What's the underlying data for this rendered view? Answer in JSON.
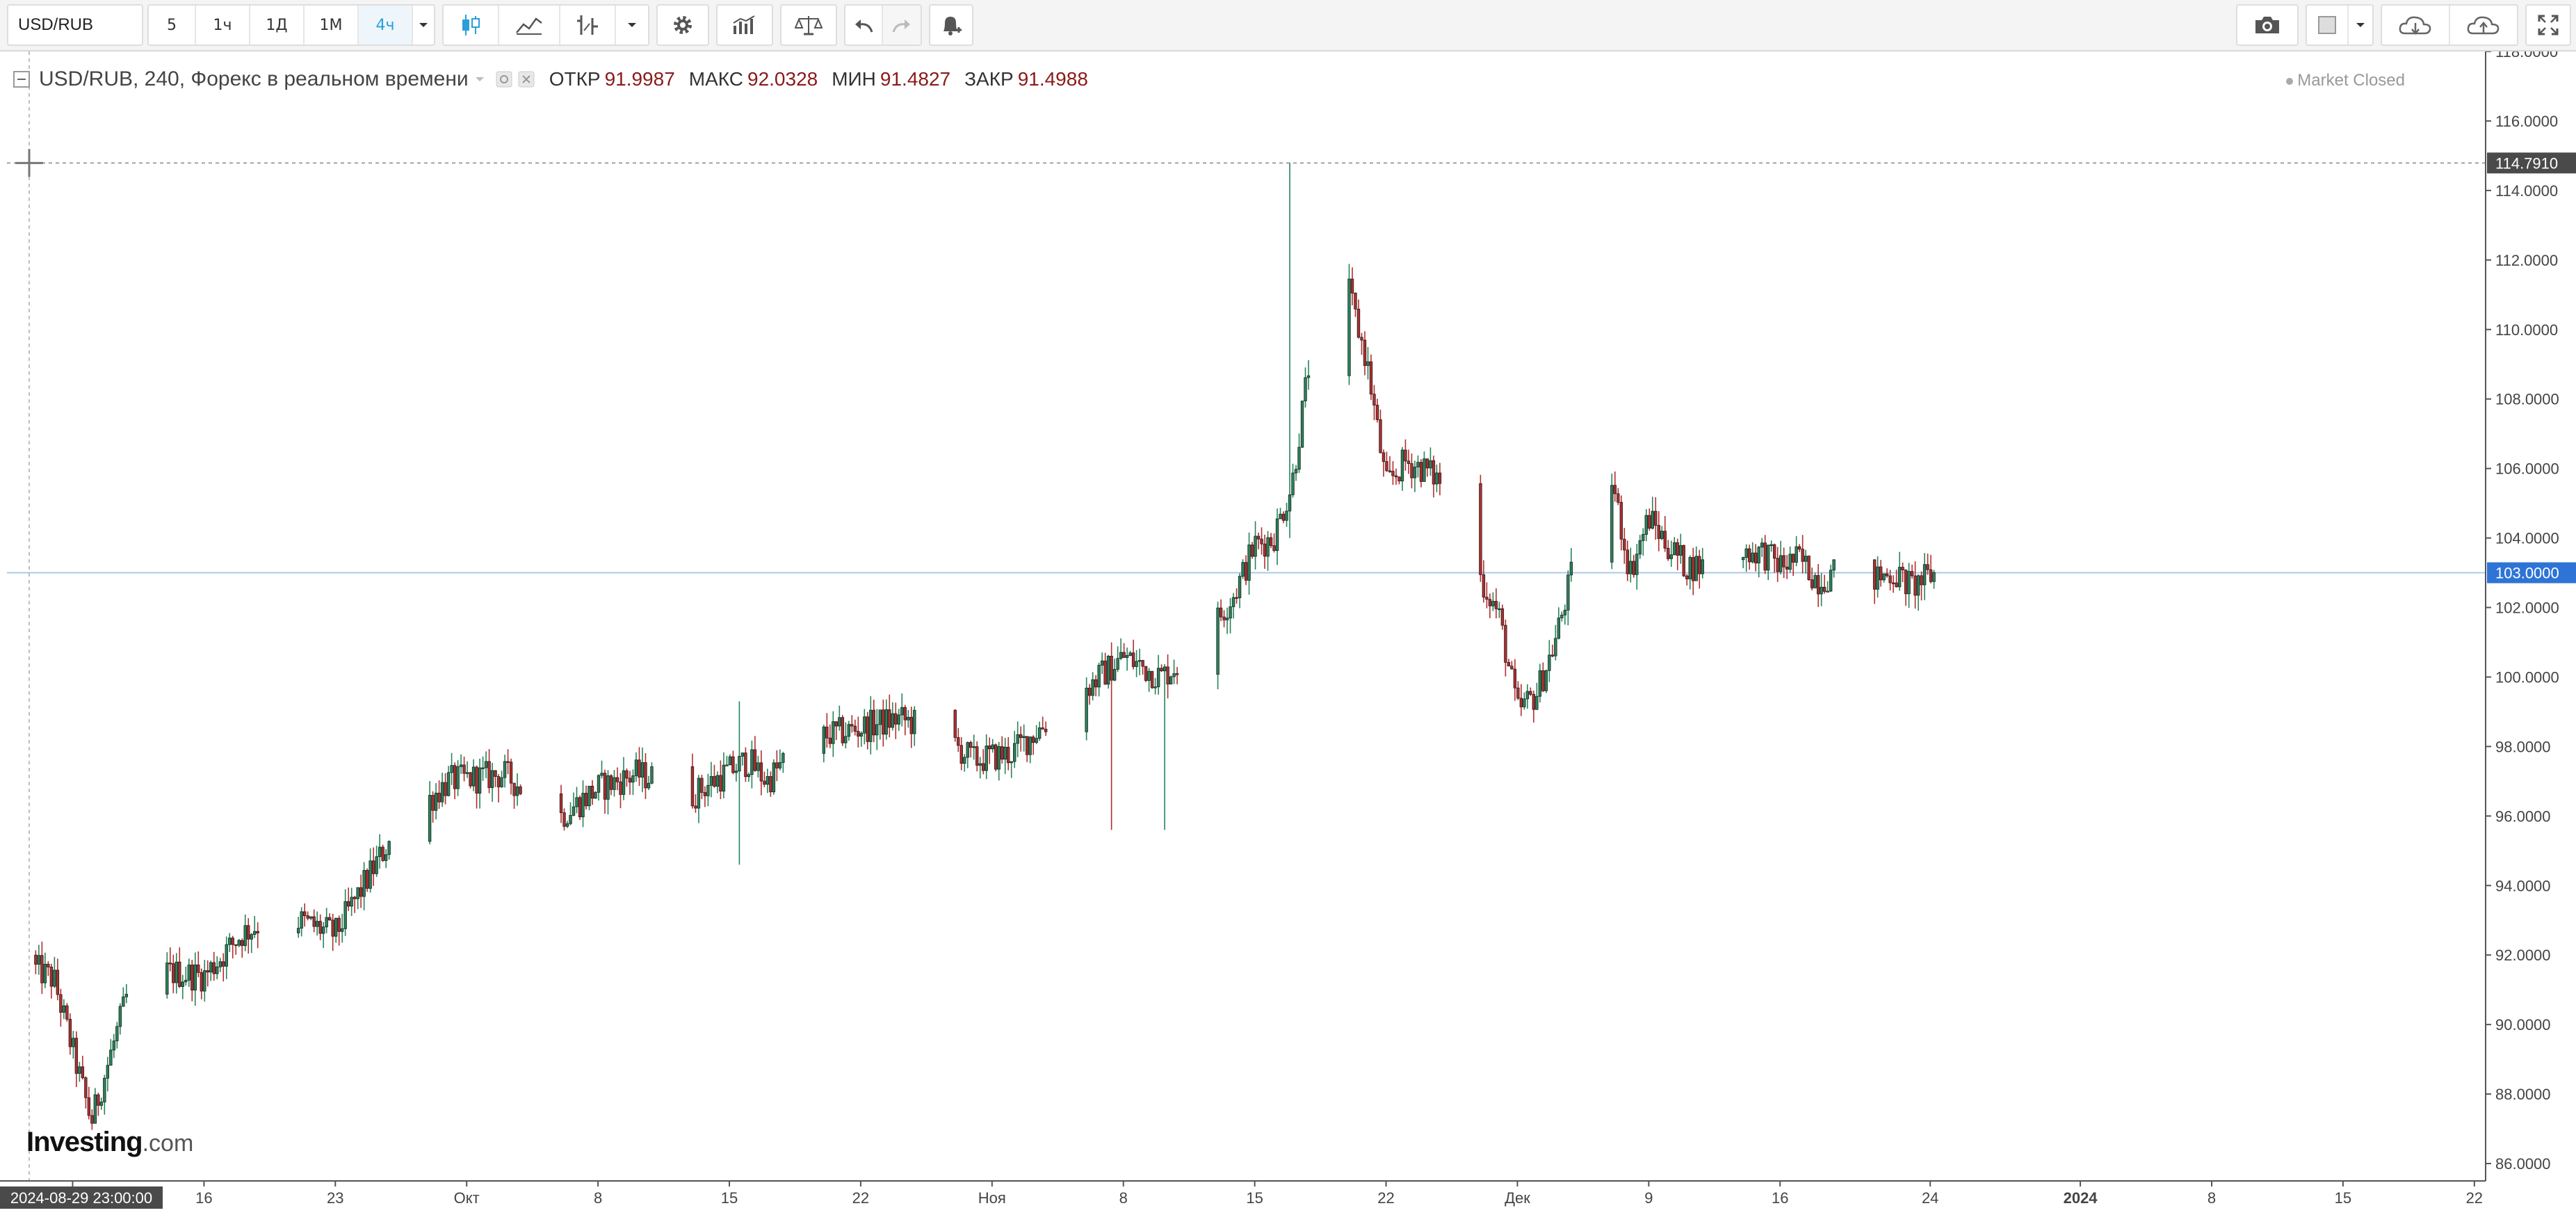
{
  "toolbar": {
    "symbol": "USD/RUB",
    "intervals": [
      "5",
      "1ч",
      "1Д",
      "1М",
      "4ч"
    ],
    "active_interval": "4ч",
    "icons": [
      "candles-icon",
      "line-chart-icon",
      "indicators-icon",
      "settings-icon",
      "bar-compare-icon",
      "scales-icon",
      "undo-icon",
      "redo-icon",
      "alert-icon",
      "camera-icon",
      "color-square-icon",
      "cloud-load-icon",
      "cloud-save-icon",
      "fullscreen-icon"
    ]
  },
  "legend": {
    "title": "USD/RUB, 240, Форекс в реальном времени",
    "open_label": "ОТКР",
    "open": "91.9987",
    "high_label": "МАКС",
    "high": "92.0328",
    "low_label": "МИН",
    "low": "91.4827",
    "close_label": "ЗАКР",
    "close": "91.4988",
    "market_status": "Market Closed"
  },
  "watermark": {
    "brand": "Investing",
    "suffix": ".com"
  },
  "colors": {
    "up": "#26845a",
    "down": "#b32d2d",
    "price_line": "#a8c8e8",
    "price_label_bg": "#2e74d6",
    "crosshair_label_bg": "#4a4a4a"
  },
  "chart_data": {
    "type": "candlestick",
    "symbol": "USD/RUB",
    "interval": "240",
    "y_ticks": [
      "86.0000",
      "88.0000",
      "90.0000",
      "92.0000",
      "94.0000",
      "96.0000",
      "98.0000",
      "100.0000",
      "102.0000",
      "104.0000",
      "106.0000",
      "108.0000",
      "110.0000",
      "112.0000",
      "114.0000",
      "116.0000",
      "118.0000"
    ],
    "ylim": [
      85.5,
      118.0
    ],
    "x_tick_labels": [
      "9",
      "16",
      "23",
      "Окт",
      "8",
      "15",
      "22",
      "Ноя",
      "8",
      "15",
      "22",
      "Дек",
      "9",
      "16",
      "24",
      "2024",
      "8",
      "15",
      "22"
    ],
    "x_tick_days": [
      0,
      7,
      14,
      21,
      28,
      35,
      42,
      49,
      56,
      63,
      70,
      77,
      84,
      91,
      99,
      107,
      114,
      121,
      128
    ],
    "x_range_days": [
      -3.5,
      128.6
    ],
    "date_start_label": "2024-08-29 23:00:00",
    "last_price": 103.0,
    "crosshair_price": 114.791,
    "crosshair_label": "114.7910",
    "last_price_label": "103.0000",
    "close_series_days": [
      -3.3,
      -1,
      1,
      3,
      5,
      7,
      9,
      11,
      14,
      17,
      20,
      23,
      26,
      28,
      30,
      32,
      33,
      35,
      36,
      37,
      39,
      41,
      44,
      46,
      48,
      50,
      53,
      56,
      58,
      60,
      62,
      63,
      64,
      65,
      67,
      69,
      70,
      71,
      72,
      73,
      74,
      76,
      77,
      78,
      79,
      80,
      81,
      82,
      83,
      84,
      85,
      86,
      87,
      88,
      90,
      91,
      92,
      93,
      94,
      95,
      96,
      97,
      98,
      99.3
    ],
    "close_series_values": [
      92.0,
      91.3,
      87.2,
      91.0,
      91.5,
      91.4,
      92.6,
      93.2,
      92.6,
      95.4,
      97.0,
      97.2,
      96.0,
      96.8,
      97.2,
      97.0,
      96.6,
      97.3,
      97.6,
      97.0,
      98.2,
      98.4,
      98.8,
      98.5,
      97.6,
      97.8,
      99.2,
      100.6,
      100.0,
      100.8,
      102.5,
      103.8,
      104.0,
      105.6,
      113.2,
      109.0,
      105.5,
      106.2,
      106.0,
      105.6,
      104.0,
      101.8,
      99.0,
      99.5,
      101.0,
      103.2,
      107.0,
      105.8,
      103.0,
      104.6,
      103.8,
      103.2,
      103.2,
      103.6,
      103.6,
      103.2,
      103.4,
      102.8,
      103.0,
      103.4,
      102.8,
      103.0,
      102.6,
      103.0
    ],
    "extreme_wicks": [
      {
        "day": 64.8,
        "high": 114.8,
        "low": 104.0
      },
      {
        "day": 80.8,
        "high": 108.6,
        "low": 102.6
      },
      {
        "day": 31.9,
        "high": 100.1,
        "low": 96.2
      },
      {
        "day": 35.5,
        "high": 99.3,
        "low": 94.6
      },
      {
        "day": 55.3,
        "high": 99.2,
        "low": 95.6
      },
      {
        "day": 58.2,
        "high": 98.7,
        "low": 95.6
      }
    ],
    "grid": false
  }
}
